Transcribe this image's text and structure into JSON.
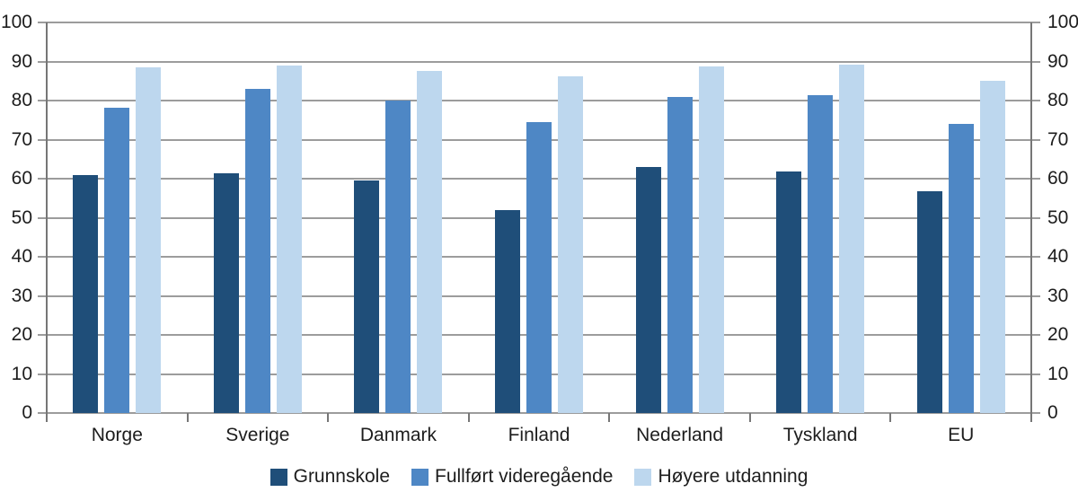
{
  "chart_data": {
    "type": "bar",
    "title": "",
    "xlabel": "",
    "ylabel": "",
    "categories": [
      "Norge",
      "Sverige",
      "Danmark",
      "Finland",
      "Nederland",
      "Tyskland",
      "EU"
    ],
    "series": [
      {
        "name": "Grunnskole",
        "color": "#1F4E79",
        "values": [
          61,
          61.4,
          59.5,
          52,
          63.1,
          61.9,
          56.8
        ]
      },
      {
        "name": "Fullført videregående",
        "color": "#4E87C5",
        "values": [
          78.2,
          83,
          80,
          74.6,
          81,
          81.4,
          74
        ]
      },
      {
        "name": "Høyere utdanning",
        "color": "#BDD7EE",
        "values": [
          88.6,
          88.9,
          87.5,
          86.2,
          88.7,
          89.2,
          85.1
        ]
      }
    ],
    "ylim": [
      0,
      100
    ],
    "yticks": [
      0,
      10,
      20,
      30,
      40,
      50,
      60,
      70,
      80,
      90,
      100
    ],
    "y_axis_sides": [
      "left",
      "right"
    ],
    "grid": true,
    "legend_position": "bottom"
  },
  "colors": {
    "background": "#FFFFFF",
    "grid": "#9C9C9C",
    "axis": "#767676",
    "text": "#1D1D1D"
  }
}
